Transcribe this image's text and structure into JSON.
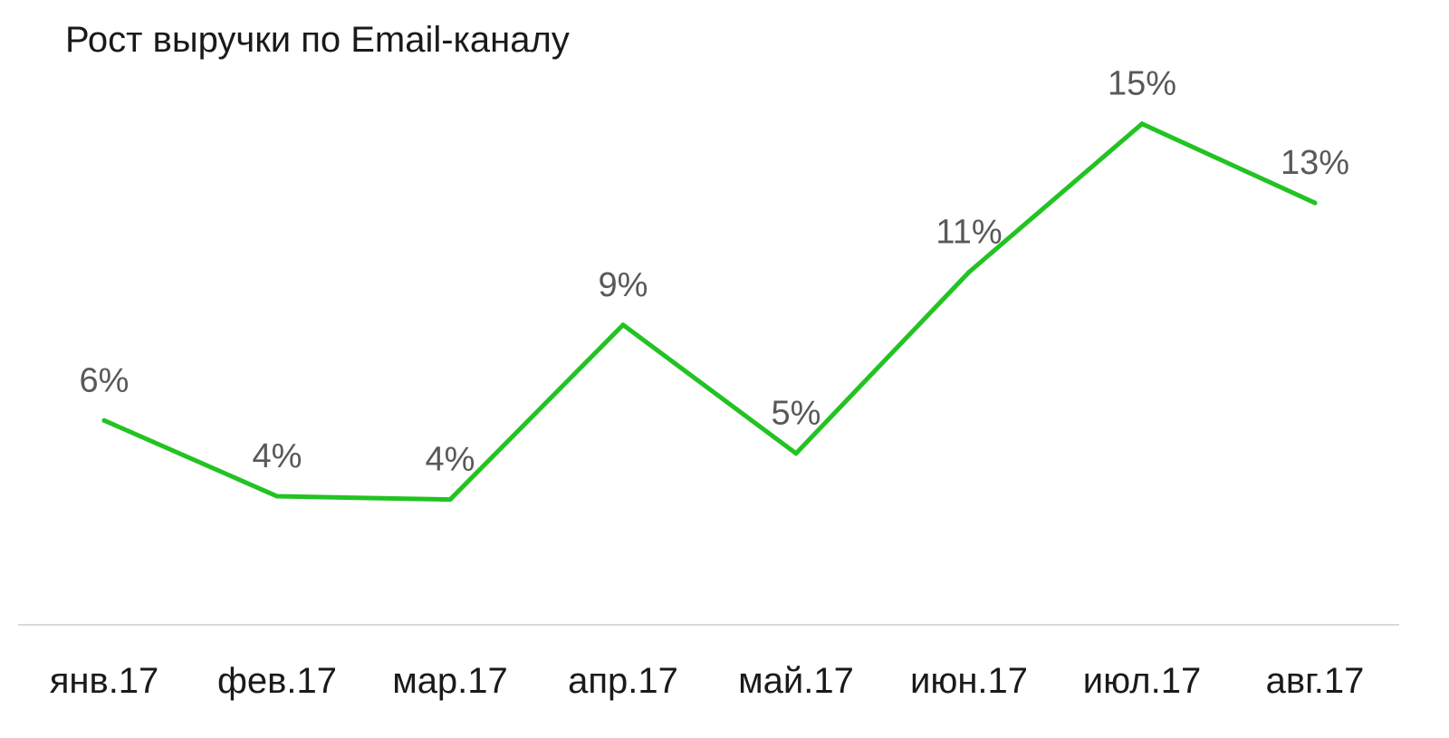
{
  "chart_data": {
    "type": "line",
    "title": "Рост выручки по Email-каналу",
    "xlabel": "",
    "ylabel": "",
    "categories": [
      "янв.17",
      "фев.17",
      "мар.17",
      "апр.17",
      "май.17",
      "июн.17",
      "июл.17",
      "авг.17"
    ],
    "series": [
      {
        "values": [
          6.2,
          3.9,
          3.8,
          9.1,
          5.2,
          10.7,
          15.2,
          12.8
        ],
        "labels": [
          "6%",
          "4%",
          "4%",
          "9%",
          "5%",
          "11%",
          "15%",
          "13%"
        ],
        "color": "#22c322"
      }
    ],
    "ylim": [
      0,
      17
    ],
    "grid": false,
    "legend": "none",
    "axis_color": "#d9d9d9"
  }
}
